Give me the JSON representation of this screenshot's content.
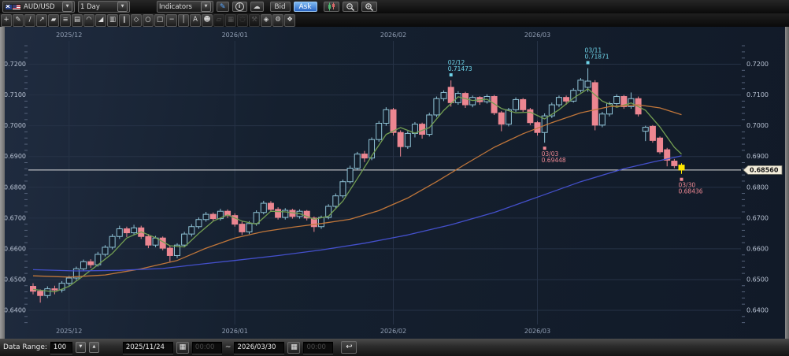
{
  "toolbar": {
    "symbol": "AUD/USD",
    "timeframe": "1 Day",
    "indicators_label": "Indicators",
    "bid_label": "Bid",
    "ask_label": "Ask",
    "dropdown_glyph": "▼",
    "icons": [
      {
        "name": "pen-icon",
        "glyph": "✎"
      },
      {
        "name": "info-icon",
        "glyph": "i"
      },
      {
        "name": "cloud-icon",
        "glyph": "☁"
      }
    ]
  },
  "drawing_tools": [
    {
      "name": "crosshair-tool-button",
      "glyph": "+",
      "enabled": true
    },
    {
      "name": "pencil-tool-button",
      "glyph": "✎",
      "enabled": true
    },
    {
      "name": "trendline-tool-button",
      "glyph": "∕",
      "enabled": true
    },
    {
      "name": "ray-tool-button",
      "glyph": "↗",
      "enabled": true
    },
    {
      "name": "marker-tool-button",
      "glyph": "▰",
      "enabled": true
    },
    {
      "name": "horizontal-lines-tool-button",
      "glyph": "≡",
      "enabled": true
    },
    {
      "name": "parallel-lines-tool-button",
      "glyph": "▤",
      "enabled": true
    },
    {
      "name": "arcs-tool-button",
      "glyph": "◠",
      "enabled": true
    },
    {
      "name": "fan-lines-tool-button",
      "glyph": "◢",
      "enabled": true
    },
    {
      "name": "time-zones-tool-button",
      "glyph": "▥",
      "enabled": true
    },
    {
      "name": "pitchfork-tool-button",
      "glyph": "∥",
      "enabled": true
    },
    {
      "name": "polygon-tool-button",
      "glyph": "◇",
      "enabled": true
    },
    {
      "name": "ellipse-tool-button",
      "glyph": "○",
      "enabled": true
    },
    {
      "name": "rectangle-tool-button",
      "glyph": "□",
      "enabled": true
    },
    {
      "name": "horizontal-line-tool-button",
      "glyph": "─",
      "enabled": true
    },
    {
      "name": "vertical-line-tool-button",
      "glyph": "│",
      "enabled": true
    },
    {
      "name": "text-tool-button",
      "glyph": "A",
      "enabled": true
    },
    {
      "name": "announcement-tool-button",
      "glyph": "☻",
      "enabled": true
    },
    {
      "name": "copy-tool-button",
      "glyph": "▱",
      "enabled": false
    },
    {
      "name": "layout-tool-button",
      "glyph": "▦",
      "enabled": false
    },
    {
      "name": "select-tool-button",
      "glyph": "◌",
      "enabled": false
    },
    {
      "name": "hammer-tool-button",
      "glyph": "⚒",
      "enabled": false
    },
    {
      "name": "eraser-tool-button",
      "glyph": "◈",
      "enabled": true
    },
    {
      "name": "settings-tool-button",
      "glyph": "⚙",
      "enabled": true
    },
    {
      "name": "brush-tool-button",
      "glyph": "❖",
      "enabled": true
    }
  ],
  "bottom_bar": {
    "data_range_label": "Data Range:",
    "data_range_value": "100",
    "down_glyph": "▼",
    "up_glyph": "▲",
    "start_date": "2025/11/24",
    "start_time": "00:00",
    "separator": "~",
    "end_date": "2026/03/30",
    "end_time": "00:00",
    "calendar_glyph": "▦",
    "undo_glyph": "↩"
  },
  "chart_data": {
    "type": "candlestick",
    "symbol": "AUD/USD",
    "interval": "1 Day",
    "price_axis": {
      "min": 0.64,
      "max": 0.72,
      "step": 0.01,
      "minor_step": 0.002,
      "tick_labels": [
        "0.7200",
        "0.7100",
        "0.7000",
        "0.6900",
        "0.6800",
        "0.6700",
        "0.6600",
        "0.6500",
        "0.6400"
      ]
    },
    "time_axis": {
      "labels": [
        "2025/12",
        "2026/01",
        "2026/02",
        "2026/03"
      ],
      "label_indices": [
        5,
        28,
        50,
        70
      ]
    },
    "current_price": "0.68560",
    "current_price_value": 0.6856,
    "highlight_last": true,
    "candles": [
      [
        0.6478,
        0.6488,
        0.6452,
        0.6462
      ],
      [
        0.6462,
        0.6468,
        0.6425,
        0.6448
      ],
      [
        0.6448,
        0.6478,
        0.644,
        0.647
      ],
      [
        0.647,
        0.648,
        0.6452,
        0.6466
      ],
      [
        0.6466,
        0.6495,
        0.6458,
        0.6488
      ],
      [
        0.6488,
        0.6512,
        0.648,
        0.6505
      ],
      [
        0.6505,
        0.6542,
        0.6498,
        0.6535
      ],
      [
        0.6535,
        0.6565,
        0.6528,
        0.6558
      ],
      [
        0.6558,
        0.6566,
        0.6538,
        0.6548
      ],
      [
        0.6548,
        0.659,
        0.6542,
        0.6582
      ],
      [
        0.6582,
        0.6612,
        0.6575,
        0.6605
      ],
      [
        0.6605,
        0.6648,
        0.6598,
        0.664
      ],
      [
        0.664,
        0.6675,
        0.6632,
        0.6665
      ],
      [
        0.6665,
        0.6672,
        0.6638,
        0.6652
      ],
      [
        0.6652,
        0.6678,
        0.6645,
        0.6668
      ],
      [
        0.6668,
        0.6675,
        0.6632,
        0.664
      ],
      [
        0.664,
        0.6648,
        0.6602,
        0.6612
      ],
      [
        0.6612,
        0.6642,
        0.6605,
        0.6635
      ],
      [
        0.6635,
        0.664,
        0.6595,
        0.6602
      ],
      [
        0.6602,
        0.661,
        0.6558,
        0.6578
      ],
      [
        0.6578,
        0.6618,
        0.657,
        0.6612
      ],
      [
        0.6612,
        0.6655,
        0.6605,
        0.6648
      ],
      [
        0.6648,
        0.668,
        0.664,
        0.6672
      ],
      [
        0.6672,
        0.6702,
        0.6665,
        0.6695
      ],
      [
        0.6695,
        0.672,
        0.6688,
        0.6712
      ],
      [
        0.6712,
        0.6718,
        0.669,
        0.6698
      ],
      [
        0.6698,
        0.673,
        0.6692,
        0.6722
      ],
      [
        0.6722,
        0.6728,
        0.67,
        0.6708
      ],
      [
        0.6708,
        0.6715,
        0.6672,
        0.668
      ],
      [
        0.668,
        0.6688,
        0.6645,
        0.6655
      ],
      [
        0.6655,
        0.669,
        0.6648,
        0.6682
      ],
      [
        0.6682,
        0.6725,
        0.6675,
        0.6718
      ],
      [
        0.6718,
        0.6756,
        0.6712,
        0.6748
      ],
      [
        0.6748,
        0.6755,
        0.672,
        0.6728
      ],
      [
        0.6728,
        0.6735,
        0.6695,
        0.6702
      ],
      [
        0.6702,
        0.6732,
        0.6695,
        0.6725
      ],
      [
        0.6725,
        0.673,
        0.6698,
        0.6705
      ],
      [
        0.6705,
        0.6728,
        0.6698,
        0.6722
      ],
      [
        0.6722,
        0.6726,
        0.6692,
        0.67
      ],
      [
        0.67,
        0.6705,
        0.6655,
        0.6672
      ],
      [
        0.6672,
        0.6708,
        0.6665,
        0.6702
      ],
      [
        0.6702,
        0.6745,
        0.6696,
        0.6738
      ],
      [
        0.6738,
        0.678,
        0.6732,
        0.6772
      ],
      [
        0.6772,
        0.6825,
        0.6765,
        0.6818
      ],
      [
        0.6818,
        0.687,
        0.6812,
        0.6862
      ],
      [
        0.6862,
        0.6915,
        0.6855,
        0.6908
      ],
      [
        0.6908,
        0.6918,
        0.6882,
        0.6895
      ],
      [
        0.6895,
        0.6962,
        0.6888,
        0.6955
      ],
      [
        0.6955,
        0.7015,
        0.6948,
        0.7008
      ],
      [
        0.7008,
        0.706,
        0.7,
        0.7052
      ],
      [
        0.7052,
        0.7058,
        0.6968,
        0.6978
      ],
      [
        0.6978,
        0.6985,
        0.69,
        0.6932
      ],
      [
        0.6932,
        0.6982,
        0.6925,
        0.6975
      ],
      [
        0.6975,
        0.7012,
        0.6962,
        0.7005
      ],
      [
        0.7005,
        0.701,
        0.6958,
        0.6972
      ],
      [
        0.6972,
        0.7042,
        0.6965,
        0.7035
      ],
      [
        0.7035,
        0.7095,
        0.7028,
        0.7088
      ],
      [
        0.7088,
        0.7115,
        0.708,
        0.7108
      ],
      [
        0.7125,
        0.71473,
        0.7062,
        0.7075
      ],
      [
        0.7075,
        0.7112,
        0.7068,
        0.7105
      ],
      [
        0.7105,
        0.711,
        0.7058,
        0.7068
      ],
      [
        0.7068,
        0.7098,
        0.706,
        0.7092
      ],
      [
        0.7092,
        0.7096,
        0.7068,
        0.7078
      ],
      [
        0.7078,
        0.7102,
        0.7072,
        0.7095
      ],
      [
        0.7095,
        0.71,
        0.7035,
        0.7042
      ],
      [
        0.7042,
        0.7048,
        0.6982,
        0.7005
      ],
      [
        0.7005,
        0.7058,
        0.6998,
        0.7052
      ],
      [
        0.7052,
        0.7092,
        0.7045,
        0.7085
      ],
      [
        0.7085,
        0.709,
        0.7045,
        0.7052
      ],
      [
        0.7052,
        0.7058,
        0.7002,
        0.701
      ],
      [
        0.701,
        0.7015,
        0.6968,
        0.6978
      ],
      [
        0.6978,
        0.704,
        0.69448,
        0.7032
      ],
      [
        0.7032,
        0.7075,
        0.7025,
        0.7068
      ],
      [
        0.7068,
        0.7098,
        0.706,
        0.7092
      ],
      [
        0.7092,
        0.7098,
        0.7068,
        0.708
      ],
      [
        0.708,
        0.7122,
        0.7075,
        0.7115
      ],
      [
        0.7115,
        0.7155,
        0.7108,
        0.7148
      ],
      [
        0.7125,
        0.71871,
        0.711,
        0.7145
      ],
      [
        0.714,
        0.7148,
        0.6985,
        0.7002
      ],
      [
        0.7002,
        0.7045,
        0.6995,
        0.7038
      ],
      [
        0.7038,
        0.7078,
        0.703,
        0.7072
      ],
      [
        0.7072,
        0.7102,
        0.7065,
        0.7095
      ],
      [
        0.7095,
        0.71,
        0.7055,
        0.7062
      ],
      [
        0.7062,
        0.7108,
        0.7055,
        0.7088
      ],
      [
        0.7088,
        0.7095,
        0.703,
        0.7038
      ],
      [
        0.6982,
        0.7,
        0.695,
        0.6995
      ],
      [
        0.6998,
        0.7002,
        0.6945,
        0.6952
      ],
      [
        0.696,
        0.6965,
        0.6908,
        0.6915
      ],
      [
        0.6922,
        0.6928,
        0.6868,
        0.6888
      ],
      [
        0.6885,
        0.6892,
        0.6862,
        0.687
      ],
      [
        0.6872,
        0.6878,
        0.68436,
        0.6856
      ]
    ],
    "ma_lines": [
      {
        "name": "short-ma",
        "color": "#739e52",
        "points": [
          [
            0,
            0.6468
          ],
          [
            3,
            0.646
          ],
          [
            5,
            0.6478
          ],
          [
            7,
            0.6512
          ],
          [
            9,
            0.6548
          ],
          [
            11,
            0.6585
          ],
          [
            13,
            0.6635
          ],
          [
            15,
            0.6655
          ],
          [
            17,
            0.6636
          ],
          [
            19,
            0.661
          ],
          [
            21,
            0.6606
          ],
          [
            23,
            0.665
          ],
          [
            25,
            0.669
          ],
          [
            27,
            0.671
          ],
          [
            29,
            0.669
          ],
          [
            31,
            0.668
          ],
          [
            33,
            0.6722
          ],
          [
            35,
            0.672
          ],
          [
            37,
            0.6714
          ],
          [
            39,
            0.6696
          ],
          [
            41,
            0.6706
          ],
          [
            43,
            0.6755
          ],
          [
            45,
            0.6828
          ],
          [
            47,
            0.6902
          ],
          [
            49,
            0.6972
          ],
          [
            51,
            0.6994
          ],
          [
            53,
            0.6976
          ],
          [
            55,
            0.6994
          ],
          [
            57,
            0.705
          ],
          [
            59,
            0.7094
          ],
          [
            61,
            0.7082
          ],
          [
            63,
            0.7086
          ],
          [
            65,
            0.7056
          ],
          [
            67,
            0.7042
          ],
          [
            69,
            0.7044
          ],
          [
            71,
            0.7022
          ],
          [
            73,
            0.7052
          ],
          [
            75,
            0.709
          ],
          [
            77,
            0.712
          ],
          [
            79,
            0.708
          ],
          [
            81,
            0.706
          ],
          [
            83,
            0.7074
          ],
          [
            85,
            0.705
          ],
          [
            87,
            0.6996
          ],
          [
            89,
            0.693
          ],
          [
            90,
            0.6908
          ]
        ]
      },
      {
        "name": "mid-ma",
        "color": "#c0763a",
        "points": [
          [
            0,
            0.6512
          ],
          [
            5,
            0.6508
          ],
          [
            10,
            0.6515
          ],
          [
            15,
            0.6535
          ],
          [
            20,
            0.6562
          ],
          [
            24,
            0.6602
          ],
          [
            28,
            0.6635
          ],
          [
            32,
            0.6656
          ],
          [
            36,
            0.667
          ],
          [
            40,
            0.6682
          ],
          [
            44,
            0.6696
          ],
          [
            48,
            0.6724
          ],
          [
            52,
            0.6765
          ],
          [
            56,
            0.6818
          ],
          [
            60,
            0.6875
          ],
          [
            64,
            0.693
          ],
          [
            68,
            0.6974
          ],
          [
            72,
            0.701
          ],
          [
            76,
            0.7042
          ],
          [
            80,
            0.7062
          ],
          [
            84,
            0.7068
          ],
          [
            87,
            0.7058
          ],
          [
            90,
            0.7036
          ]
        ]
      },
      {
        "name": "long-ma",
        "color": "#4450cc",
        "points": [
          [
            0,
            0.6532
          ],
          [
            6,
            0.6528
          ],
          [
            12,
            0.653
          ],
          [
            18,
            0.6536
          ],
          [
            24,
            0.6552
          ],
          [
            28,
            0.6562
          ],
          [
            34,
            0.6578
          ],
          [
            40,
            0.6596
          ],
          [
            46,
            0.6618
          ],
          [
            52,
            0.6645
          ],
          [
            58,
            0.6678
          ],
          [
            64,
            0.6718
          ],
          [
            70,
            0.6768
          ],
          [
            76,
            0.6818
          ],
          [
            82,
            0.686
          ],
          [
            86,
            0.6882
          ],
          [
            90,
            0.6902
          ]
        ]
      }
    ],
    "annotations": [
      {
        "index": 58,
        "date": "02/12",
        "value": "0.71473",
        "color": "#6ed3e8",
        "position": "above"
      },
      {
        "index": 77,
        "date": "03/11",
        "value": "0.71871",
        "color": "#6ed3e8",
        "position": "above"
      },
      {
        "index": 71,
        "date": "03/03",
        "value": "0.69448",
        "color": "#f08a94",
        "position": "below"
      },
      {
        "index": 90,
        "date": "03/30",
        "value": "0.68436",
        "color": "#f08a94",
        "position": "below"
      }
    ],
    "colors": {
      "bull": "#8fc3d6",
      "bear": "#ec8691",
      "highlight": "#ffe800",
      "grid": "#263246",
      "price_line": "#e3e3e3",
      "badge_bg": "#f2ecda",
      "body_fill_bull": "#141f2d"
    }
  }
}
